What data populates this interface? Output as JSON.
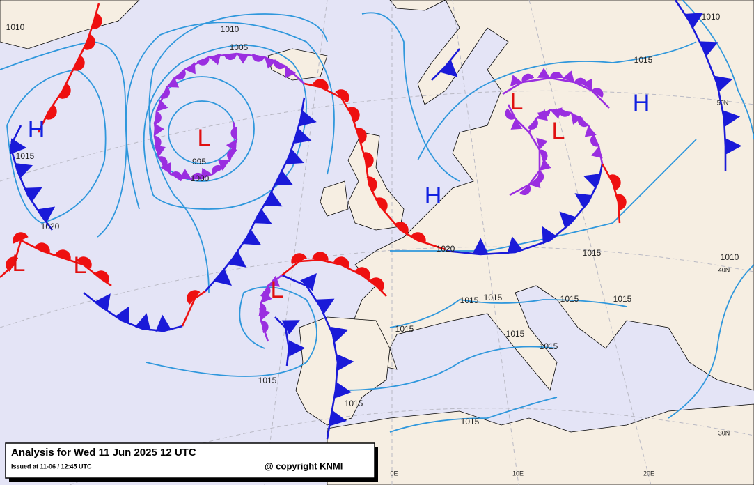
{
  "map": {
    "pressure_centers": [
      "H",
      "L",
      "H",
      "L",
      "L",
      "H",
      "L",
      "L",
      "L"
    ],
    "isobar_labels": [
      "1010",
      "1005",
      "995",
      "1000",
      "1015",
      "1020",
      "1015",
      "1010",
      "1020",
      "1015",
      "1015",
      "1015",
      "1015",
      "1015",
      "1015",
      "1015",
      "1015",
      "1015",
      "1015",
      "1015",
      "1010",
      "1010"
    ],
    "grid_labels": [
      "50N",
      "40N",
      "30N",
      "0E",
      "10E",
      "20E"
    ]
  },
  "footer": {
    "title": "Analysis for Wed 11 Jun 2025 12 UTC",
    "issued": "Issued at 11-06 / 12:45 UTC",
    "copyright": "@ copyright KNMI"
  }
}
